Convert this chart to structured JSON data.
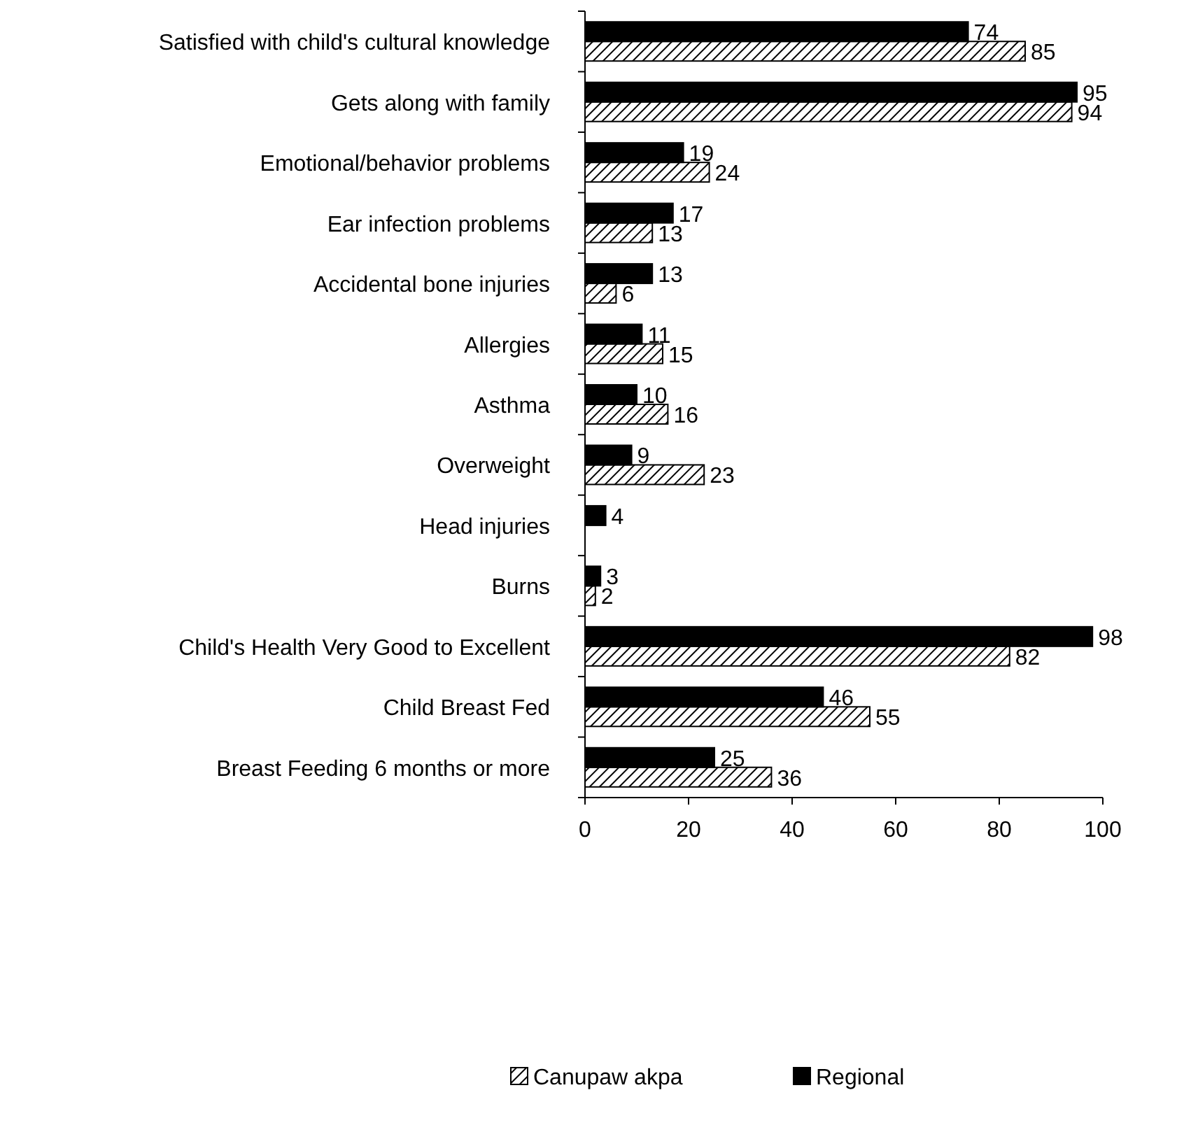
{
  "chart_data": {
    "type": "bar",
    "orientation": "horizontal",
    "categories": [
      "Satisfied with child's cultural knowledge",
      "Gets along with family",
      "Emotional/behavior problems",
      "Ear infection problems",
      "Accidental bone injuries",
      "Allergies",
      "Asthma",
      "Overweight",
      "Head injuries",
      "Burns",
      "Child's Health Very Good to Excellent",
      "Child Breast Fed",
      "Breast Feeding 6 months or more"
    ],
    "series": [
      {
        "name": "Canupaw akpa",
        "color": "#000000",
        "values": [
          85,
          94,
          24,
          13,
          6,
          15,
          16,
          23,
          null,
          2,
          82,
          55,
          36
        ]
      },
      {
        "name": "Regional",
        "color": "#000000",
        "values": [
          74,
          95,
          19,
          17,
          13,
          11,
          10,
          9,
          4,
          3,
          98,
          46,
          25
        ]
      }
    ],
    "xlim": [
      0,
      100
    ],
    "xticks": [
      0,
      20,
      40,
      60,
      80,
      100
    ],
    "data_labels": true,
    "grid": false,
    "legend": "bottom"
  }
}
